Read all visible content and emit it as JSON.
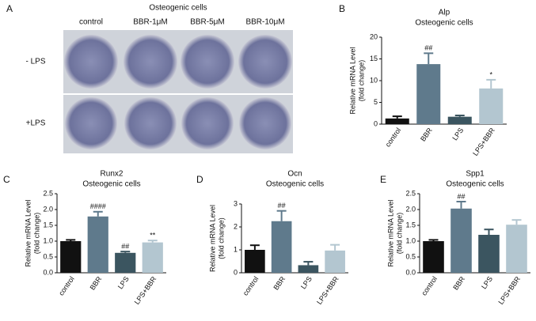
{
  "panel_a": {
    "label": "A",
    "title": "Osteogenic cells",
    "columns": [
      "control",
      "BBR-1μM",
      "BBR-5μM",
      "BBR-10μM"
    ],
    "rows": [
      "- LPS",
      "+LPS"
    ]
  },
  "chart_data": [
    {
      "type": "bar",
      "label": "B",
      "title": "Alp",
      "subtitle": "Osteogenic cells",
      "y_label": [
        "Relative mRNA Level",
        "(fold change)"
      ],
      "categories": [
        "control",
        "BBR",
        "LPS",
        "LPS+BBR"
      ],
      "values": [
        1.3,
        13.8,
        1.7,
        8.2
      ],
      "errors": [
        0.5,
        2.5,
        0.3,
        2.0
      ],
      "annotations": [
        null,
        "##",
        null,
        "*"
      ],
      "colors": [
        "#111111",
        "#5f7a8c",
        "#3b5560",
        "#b3c6d0"
      ],
      "ylim": [
        0,
        20
      ],
      "yticks": [
        0,
        5,
        10,
        15,
        20
      ]
    },
    {
      "type": "bar",
      "label": "C",
      "title": "Runx2",
      "subtitle": "Osteogenic cells",
      "y_label": [
        "Relative mRNA Level",
        "(fold change)"
      ],
      "categories": [
        "control",
        "BBR",
        "LPS",
        "LPS+BBR"
      ],
      "values": [
        1.0,
        1.78,
        0.63,
        0.96
      ],
      "errors": [
        0.04,
        0.15,
        0.04,
        0.06
      ],
      "annotations": [
        null,
        "####",
        "##",
        "**"
      ],
      "colors": [
        "#111111",
        "#5f7a8c",
        "#3b5560",
        "#b3c6d0"
      ],
      "ylim": [
        0,
        2.5
      ],
      "yticks": [
        {
          "value": 0,
          "label": "0.0"
        },
        0.5,
        {
          "value": 1,
          "label": "1.0"
        },
        1.5,
        {
          "value": 2,
          "label": "2.0"
        },
        2.5
      ]
    },
    {
      "type": "bar",
      "label": "D",
      "title": "Ocn",
      "subtitle": "Osteogenic cells",
      "y_label": [
        "Relative mRNA Level",
        "(fold change)"
      ],
      "categories": [
        "control",
        "BBR",
        "LPS",
        "LPS+BBR"
      ],
      "values": [
        1.0,
        2.25,
        0.33,
        0.97
      ],
      "errors": [
        0.2,
        0.45,
        0.15,
        0.25
      ],
      "annotations": [
        null,
        "##",
        null,
        null
      ],
      "colors": [
        "#111111",
        "#5f7a8c",
        "#3b5560",
        "#b3c6d0"
      ],
      "ylim": [
        0,
        3
      ],
      "yticks": [
        0,
        1,
        2,
        3
      ]
    },
    {
      "type": "bar",
      "label": "E",
      "title": "Spp1",
      "subtitle": "Osteogenic cells",
      "y_label": [
        "Relative mRNA Level",
        "(fold change)"
      ],
      "categories": [
        "control",
        "BBR",
        "LPS",
        "LPS+BBR"
      ],
      "values": [
        1.0,
        2.03,
        1.2,
        1.52
      ],
      "errors": [
        0.04,
        0.22,
        0.17,
        0.15
      ],
      "annotations": [
        null,
        "##",
        null,
        null
      ],
      "colors": [
        "#111111",
        "#5f7a8c",
        "#3b5560",
        "#b3c6d0"
      ],
      "ylim": [
        0,
        2.5
      ],
      "yticks": [
        {
          "value": 0,
          "label": "0.0"
        },
        0.5,
        {
          "value": 1,
          "label": "1.0"
        },
        1.5,
        {
          "value": 2,
          "label": "2.0"
        },
        2.5
      ]
    }
  ]
}
